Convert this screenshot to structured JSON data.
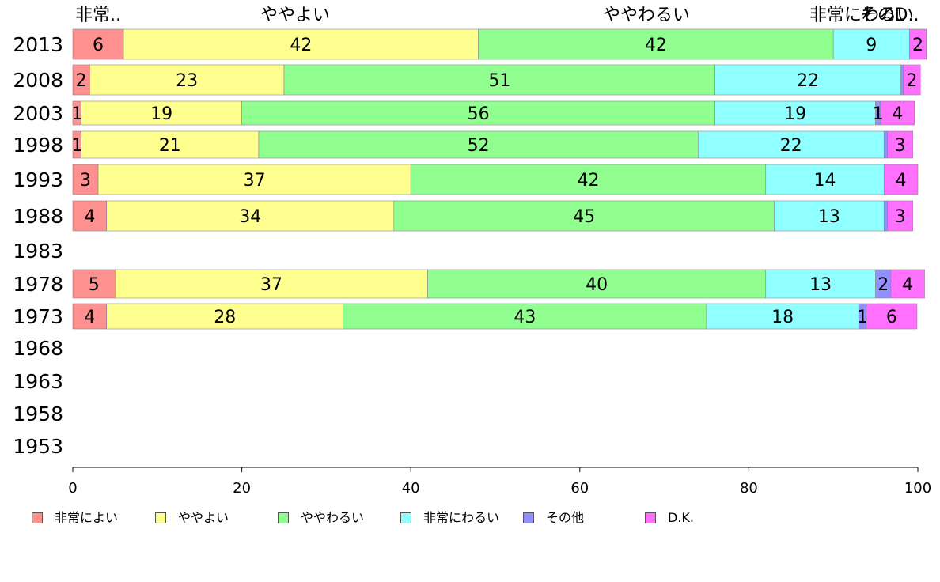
{
  "chart_data": {
    "type": "bar",
    "orientation": "horizontal",
    "stacked": true,
    "categories": [
      "2013",
      "2008",
      "2003",
      "1998",
      "1993",
      "1988",
      "1983",
      "1978",
      "1973",
      "1968",
      "1963",
      "1958",
      "1953"
    ],
    "series": [
      {
        "name": "非常によい",
        "color": "#ff9090",
        "values": [
          6,
          2,
          1,
          1,
          3,
          4,
          null,
          5,
          4,
          null,
          null,
          null,
          null
        ]
      },
      {
        "name": "ややよい",
        "color": "#ffff90",
        "values": [
          42,
          23,
          19,
          21,
          37,
          34,
          null,
          37,
          28,
          null,
          null,
          null,
          null
        ]
      },
      {
        "name": "ややわるい",
        "color": "#90ff90",
        "values": [
          42,
          51,
          56,
          52,
          42,
          45,
          null,
          40,
          43,
          null,
          null,
          null,
          null
        ]
      },
      {
        "name": "非常にわるい",
        "color": "#90ffff",
        "values": [
          9,
          22,
          19,
          22,
          14,
          13,
          null,
          13,
          18,
          null,
          null,
          null,
          null
        ]
      },
      {
        "name": "その他",
        "color": "#9090ff",
        "values": [
          0,
          0.3,
          0.6,
          0.4,
          0,
          0.4,
          null,
          1.8,
          0.9,
          null,
          null,
          null,
          null
        ]
      },
      {
        "name": "D.K.",
        "color": "#ff70ff",
        "values": [
          2,
          2,
          4,
          3,
          4,
          3,
          null,
          4,
          6,
          null,
          null,
          null,
          null
        ]
      }
    ],
    "data_labels": [
      [
        "6",
        "42",
        "42",
        "9",
        "",
        "2"
      ],
      [
        "2",
        "23",
        "51",
        "22",
        "",
        "2"
      ],
      [
        "1",
        "19",
        "56",
        "19",
        "1",
        "4"
      ],
      [
        "1",
        "21",
        "52",
        "22",
        "",
        "3"
      ],
      [
        "3",
        "37",
        "42",
        "14",
        "",
        "4"
      ],
      [
        "4",
        "34",
        "45",
        "13",
        "",
        "3"
      ],
      [],
      [
        "5",
        "37",
        "40",
        "13",
        "2",
        "4"
      ],
      [
        "4",
        "28",
        "43",
        "18",
        "1",
        "6"
      ],
      [],
      [],
      [],
      []
    ],
    "top_labels": [
      "非常..",
      "ややよい",
      "ややわるい",
      "非常にわるい",
      "その..",
      "D.."
    ],
    "xlim": [
      0,
      100
    ],
    "xticks": [
      "0",
      "20",
      "40",
      "60",
      "80",
      "100"
    ],
    "grid": false,
    "legend_position": "bottom"
  }
}
